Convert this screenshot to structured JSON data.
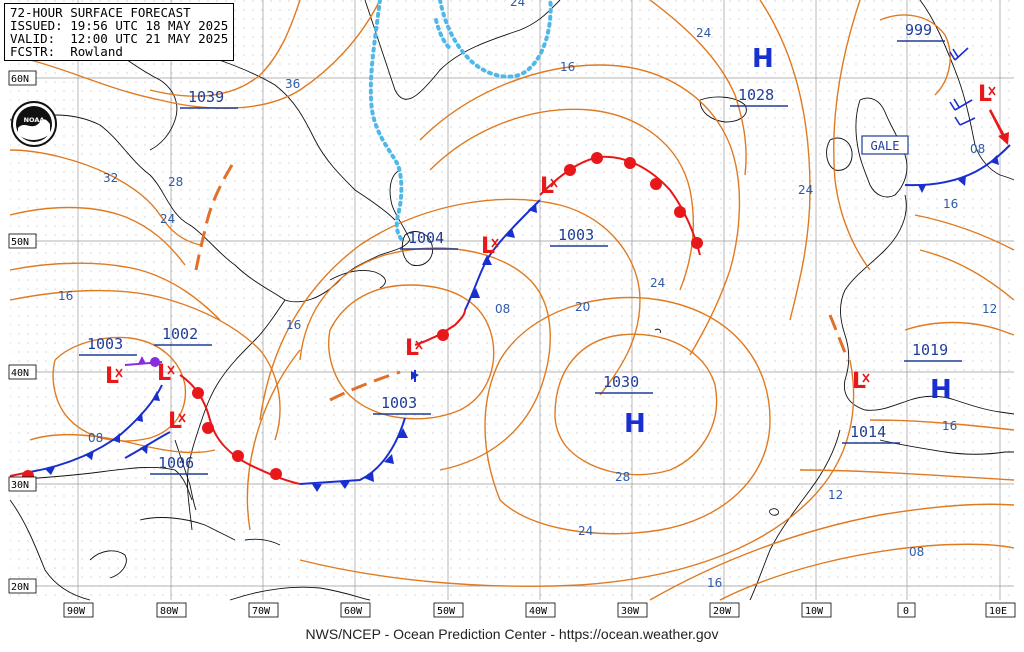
{
  "header": {
    "title": "72-HOUR SURFACE FORECAST",
    "issued": "ISSUED: 19:56 UTC 18 MAY 2025",
    "valid": "VALID:  12:00 UTC 21 MAY 2025",
    "forecaster": "FCSTR:  Rowland"
  },
  "footer": "NWS/NCEP - Ocean Prediction Center - https://ocean.weather.gov",
  "logo": {
    "icon": "noaa-logo",
    "text": "NOAA"
  },
  "lat_labels": [
    "60N",
    "50N",
    "40N",
    "30N",
    "20N"
  ],
  "lon_labels": [
    "90W",
    "80W",
    "70W",
    "60W",
    "50W",
    "40W",
    "30W",
    "20W",
    "10W",
    "0",
    "10E"
  ],
  "pressure_labels": [
    "1039",
    "1004",
    "1003",
    "1028",
    "999",
    "1003",
    "1002",
    "1003",
    "1006",
    "1030",
    "1019",
    "1014"
  ],
  "highs": [
    "H",
    "H",
    "H"
  ],
  "lows": [
    "L",
    "L",
    "L",
    "L",
    "L",
    "L",
    "L"
  ],
  "isobar_labels": [
    "24",
    "16",
    "24",
    "36",
    "32",
    "28",
    "24",
    "16",
    "16",
    "08",
    "20",
    "24",
    "28",
    "24",
    "16",
    "24",
    "16",
    "12",
    "16",
    "12",
    "08",
    "08"
  ],
  "gale_label": "GALE",
  "colors": {
    "isobar": "#e07a20",
    "cold_front": "#1a2fd0",
    "warm_front": "#e8181a",
    "occluded": "#8a2be2",
    "ice": "#4fb8e8",
    "coast": "#111111",
    "grid": "#9a9a9a",
    "trough": "#e0702a"
  }
}
